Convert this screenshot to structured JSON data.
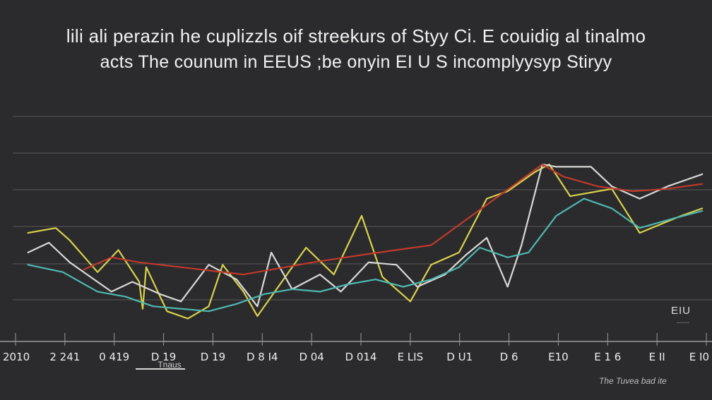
{
  "chart_data": {
    "type": "line",
    "title": "lili ali perazin he cuplizzls oif streekurs of Styy Ci. E couidig al tinalmo",
    "subtitle": "acts The counum in EEUS ;be onyin EI U S incomplyysyp Stiryy",
    "xlabel": "Tnaus",
    "ylabel": "",
    "legend_label": "EIU",
    "legend_sub": "------",
    "footer_note": "The Tuvea bad ite",
    "categories": [
      "2010",
      "2 241",
      "0 419",
      "D 19",
      "D 19",
      "D 8 I4",
      "D 04",
      "D 014",
      "E LIS",
      "D U1",
      "D 6",
      "E10",
      "E 1 6",
      "E II",
      "E I0"
    ],
    "ylim": [
      0,
      100
    ],
    "grid": true,
    "series": [
      {
        "color": "#d9d24a",
        "values": [
          [
            2,
            38
          ],
          [
            6,
            40
          ],
          [
            8,
            35
          ],
          [
            12,
            22
          ],
          [
            15,
            31
          ],
          [
            18,
            18
          ],
          [
            18.5,
            7
          ],
          [
            19,
            24
          ],
          [
            22,
            6
          ],
          [
            25,
            3
          ],
          [
            28,
            8
          ],
          [
            30,
            25
          ],
          [
            33,
            14
          ],
          [
            35,
            4
          ],
          [
            37,
            12
          ],
          [
            42,
            32
          ],
          [
            46,
            21
          ],
          [
            50,
            45
          ],
          [
            53,
            20
          ],
          [
            57,
            10
          ],
          [
            60,
            25
          ],
          [
            64,
            30
          ],
          [
            68,
            52
          ],
          [
            71,
            55
          ],
          [
            75,
            63
          ],
          [
            77,
            66
          ],
          [
            80,
            53
          ],
          [
            86,
            56
          ],
          [
            90,
            38
          ],
          [
            96,
            45
          ],
          [
            99,
            48
          ]
        ]
      },
      {
        "color": "#d8d8d8",
        "values": [
          [
            2,
            30
          ],
          [
            5,
            34
          ],
          [
            8,
            26
          ],
          [
            11,
            20
          ],
          [
            14,
            14
          ],
          [
            17,
            18
          ],
          [
            21,
            13
          ],
          [
            24,
            10
          ],
          [
            28,
            25
          ],
          [
            32,
            19
          ],
          [
            35,
            8
          ],
          [
            37,
            30
          ],
          [
            40,
            15
          ],
          [
            44,
            21
          ],
          [
            47,
            14
          ],
          [
            51,
            26
          ],
          [
            55,
            25
          ],
          [
            58,
            16
          ],
          [
            62,
            21
          ],
          [
            65,
            29
          ],
          [
            68,
            36
          ],
          [
            71,
            16
          ],
          [
            73,
            33
          ],
          [
            76,
            66
          ],
          [
            78,
            65
          ],
          [
            83,
            65
          ],
          [
            86,
            57
          ],
          [
            90,
            52
          ],
          [
            94,
            57
          ],
          [
            99,
            62
          ]
        ]
      },
      {
        "color": "#4fb8b0",
        "values": [
          [
            2,
            25
          ],
          [
            7,
            22
          ],
          [
            12,
            14
          ],
          [
            16,
            12
          ],
          [
            20,
            8
          ],
          [
            24,
            7
          ],
          [
            28,
            6
          ],
          [
            32,
            9
          ],
          [
            36,
            13
          ],
          [
            40,
            15
          ],
          [
            44,
            14
          ],
          [
            48,
            17
          ],
          [
            52,
            19
          ],
          [
            56,
            16
          ],
          [
            60,
            19
          ],
          [
            64,
            24
          ],
          [
            67,
            32
          ],
          [
            71,
            28
          ],
          [
            74,
            30
          ],
          [
            78,
            45
          ],
          [
            82,
            52
          ],
          [
            86,
            48
          ],
          [
            90,
            40
          ],
          [
            95,
            44
          ],
          [
            99,
            47
          ]
        ]
      },
      {
        "color": "#c0392b",
        "values": [
          [
            10,
            23
          ],
          [
            14,
            28
          ],
          [
            18,
            26
          ],
          [
            33,
            21
          ],
          [
            37,
            23
          ],
          [
            43,
            26
          ],
          [
            50,
            29
          ],
          [
            55,
            31
          ],
          [
            60,
            33
          ],
          [
            76,
            66
          ],
          [
            79,
            61
          ],
          [
            84,
            57
          ],
          [
            89,
            55
          ],
          [
            94,
            56
          ],
          [
            99,
            58
          ]
        ]
      }
    ]
  }
}
